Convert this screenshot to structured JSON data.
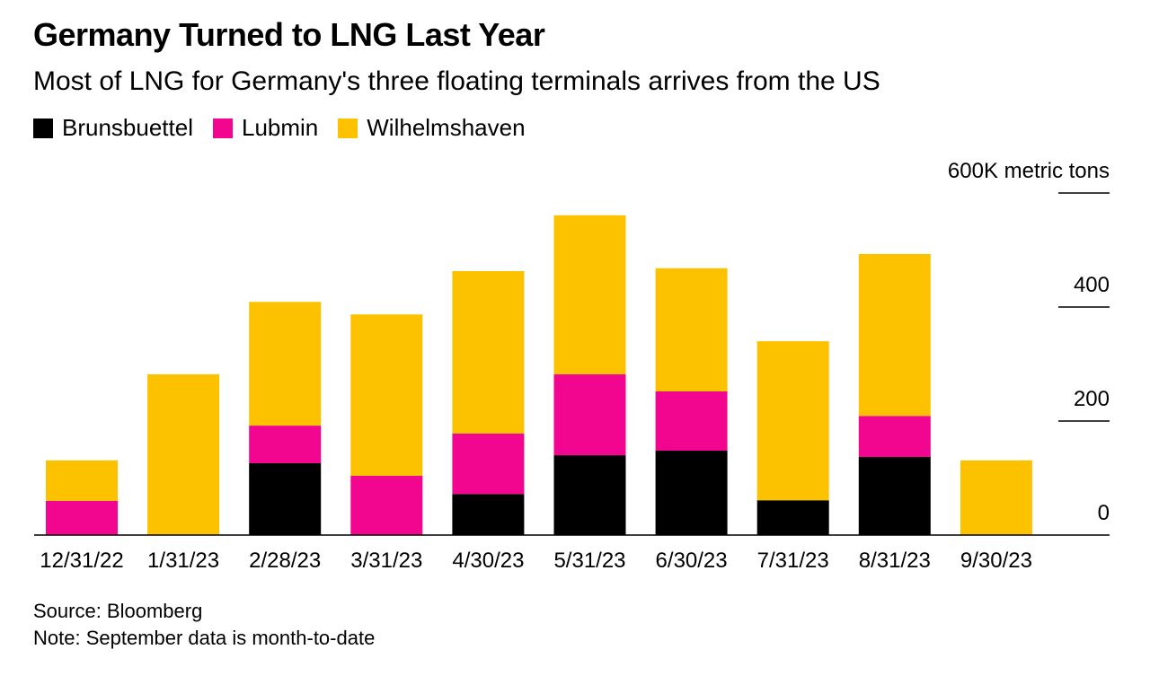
{
  "title": "Germany Turned to LNG Last Year",
  "subtitle": "Most of LNG for Germany's three floating terminals arrives from the US",
  "source": "Source: Bloomberg",
  "note": "Note: September data is month-to-date",
  "chart_data": {
    "type": "bar",
    "stacked": true,
    "title": "Germany Turned to LNG Last Year",
    "ylabel": "metric tons",
    "y_unit_label": "600K metric tons",
    "ylim": [
      0,
      600
    ],
    "yticks": [
      0,
      200,
      400,
      600
    ],
    "ytick_labels": [
      "0",
      "200",
      "400",
      "600K metric tons"
    ],
    "categories": [
      "12/31/22",
      "1/31/23",
      "2/28/23",
      "3/31/23",
      "4/30/23",
      "5/31/23",
      "6/30/23",
      "7/31/23",
      "8/31/23",
      "9/30/23"
    ],
    "series": [
      {
        "name": "Brunsbuettel",
        "color": "#000000",
        "values": [
          0,
          0,
          126,
          0,
          72,
          140,
          148,
          61,
          137,
          0
        ]
      },
      {
        "name": "Lubmin",
        "color": "#f2068f",
        "values": [
          60,
          0,
          66,
          104,
          106,
          142,
          104,
          0,
          72,
          0
        ]
      },
      {
        "name": "Wilhelmshaven",
        "color": "#fcc200",
        "values": [
          71,
          282,
          217,
          283,
          285,
          279,
          216,
          279,
          284,
          131
        ]
      }
    ],
    "legend_position": "top-left",
    "grid": false
  }
}
